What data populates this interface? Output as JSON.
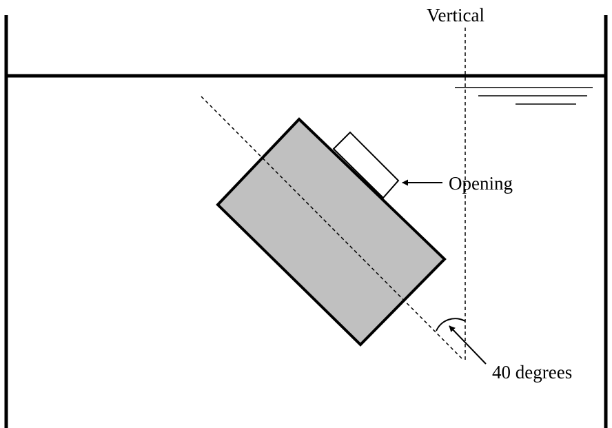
{
  "labels": {
    "vertical": "Vertical",
    "opening": "Opening",
    "angle": "40 degrees"
  },
  "colors": {
    "body_fill": "#c0c0c0",
    "opening_fill": "#ffffff",
    "line": "#000000",
    "background": "#ffffff"
  },
  "angle_degrees": 40
}
